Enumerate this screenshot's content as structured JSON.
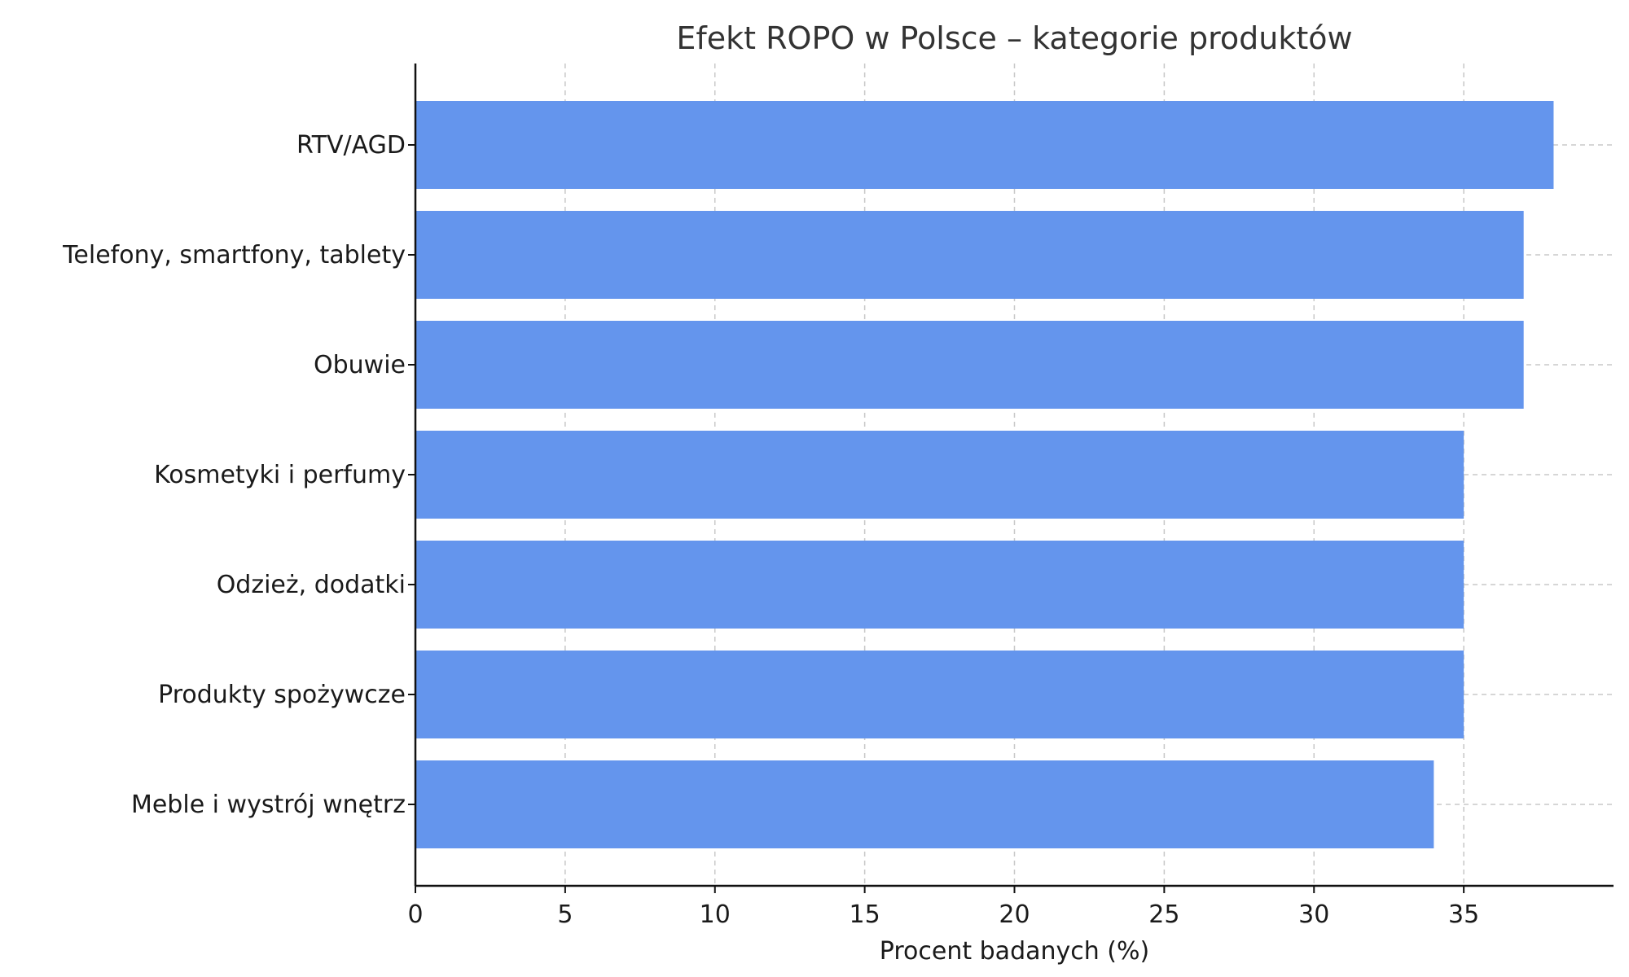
{
  "chart_data": {
    "type": "bar",
    "orientation": "horizontal",
    "title": "Efekt ROPO w Polsce – kategorie produktów",
    "xlabel": "Procent badanych (%)",
    "ylabel": "",
    "categories": [
      "RTV/AGD",
      "Telefony, smartfony, tablety",
      "Obuwie",
      "Kosmetyki i perfumy",
      "Odzież, dodatki",
      "Produkty spożywcze",
      "Meble i wystrój wnętrz"
    ],
    "values": [
      38,
      37,
      37,
      35,
      35,
      35,
      34
    ],
    "xlim": [
      0,
      40
    ],
    "xticks": [
      "0",
      "5",
      "10",
      "15",
      "20",
      "25",
      "30",
      "35"
    ],
    "grid": true,
    "bar_color": "#6495ED"
  }
}
